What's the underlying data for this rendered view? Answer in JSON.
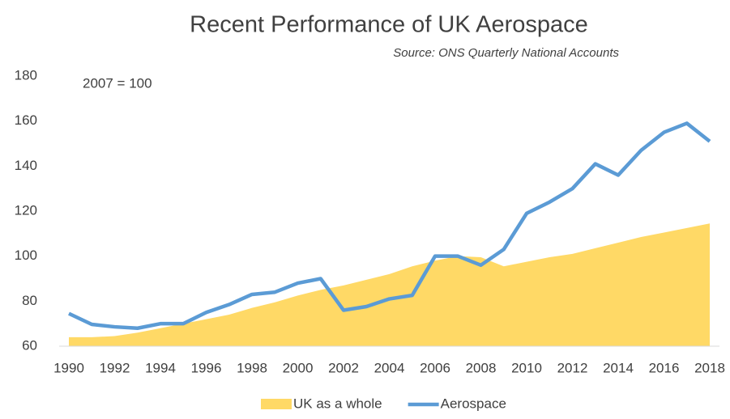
{
  "chart_data": {
    "type": "area-line",
    "title": "Recent Performance of UK Aerospace",
    "subtitle": "Source: ONS Quarterly National Accounts",
    "annotation": "2007 = 100",
    "x": [
      1990,
      1991,
      1992,
      1993,
      1994,
      1995,
      1996,
      1997,
      1998,
      1999,
      2000,
      2001,
      2002,
      2003,
      2004,
      2005,
      2006,
      2007,
      2008,
      2009,
      2010,
      2011,
      2012,
      2013,
      2014,
      2015,
      2016,
      2017,
      2018
    ],
    "series": [
      {
        "name": "UK as a whole",
        "kind": "area",
        "color": "#ffd966",
        "values": [
          64,
          64,
          64.5,
          66,
          68,
          70,
          72,
          74,
          77,
          79.5,
          82.5,
          85,
          87,
          89.5,
          92,
          95.5,
          98,
          100,
          99.5,
          95.5,
          97.5,
          99.5,
          101,
          103.5,
          106,
          108.5,
          110.5,
          112.5,
          114.5
        ]
      },
      {
        "name": "Aerospace",
        "kind": "line",
        "color": "#5b9bd5",
        "values": [
          74.5,
          69.7,
          68.6,
          68,
          70,
          70,
          75,
          78.5,
          83,
          84,
          88,
          90,
          76,
          77.6,
          81,
          82.6,
          100,
          100,
          96,
          103,
          119,
          124,
          130,
          141,
          136,
          147,
          155,
          159,
          151
        ]
      }
    ],
    "xlim": [
      1990,
      2018
    ],
    "xticks": [
      1990,
      1992,
      1994,
      1996,
      1998,
      2000,
      2002,
      2004,
      2006,
      2008,
      2010,
      2012,
      2014,
      2016,
      2018
    ],
    "ylim": [
      60,
      180
    ],
    "yticks": [
      60,
      80,
      100,
      120,
      140,
      160,
      180
    ],
    "legend": "bottom"
  }
}
